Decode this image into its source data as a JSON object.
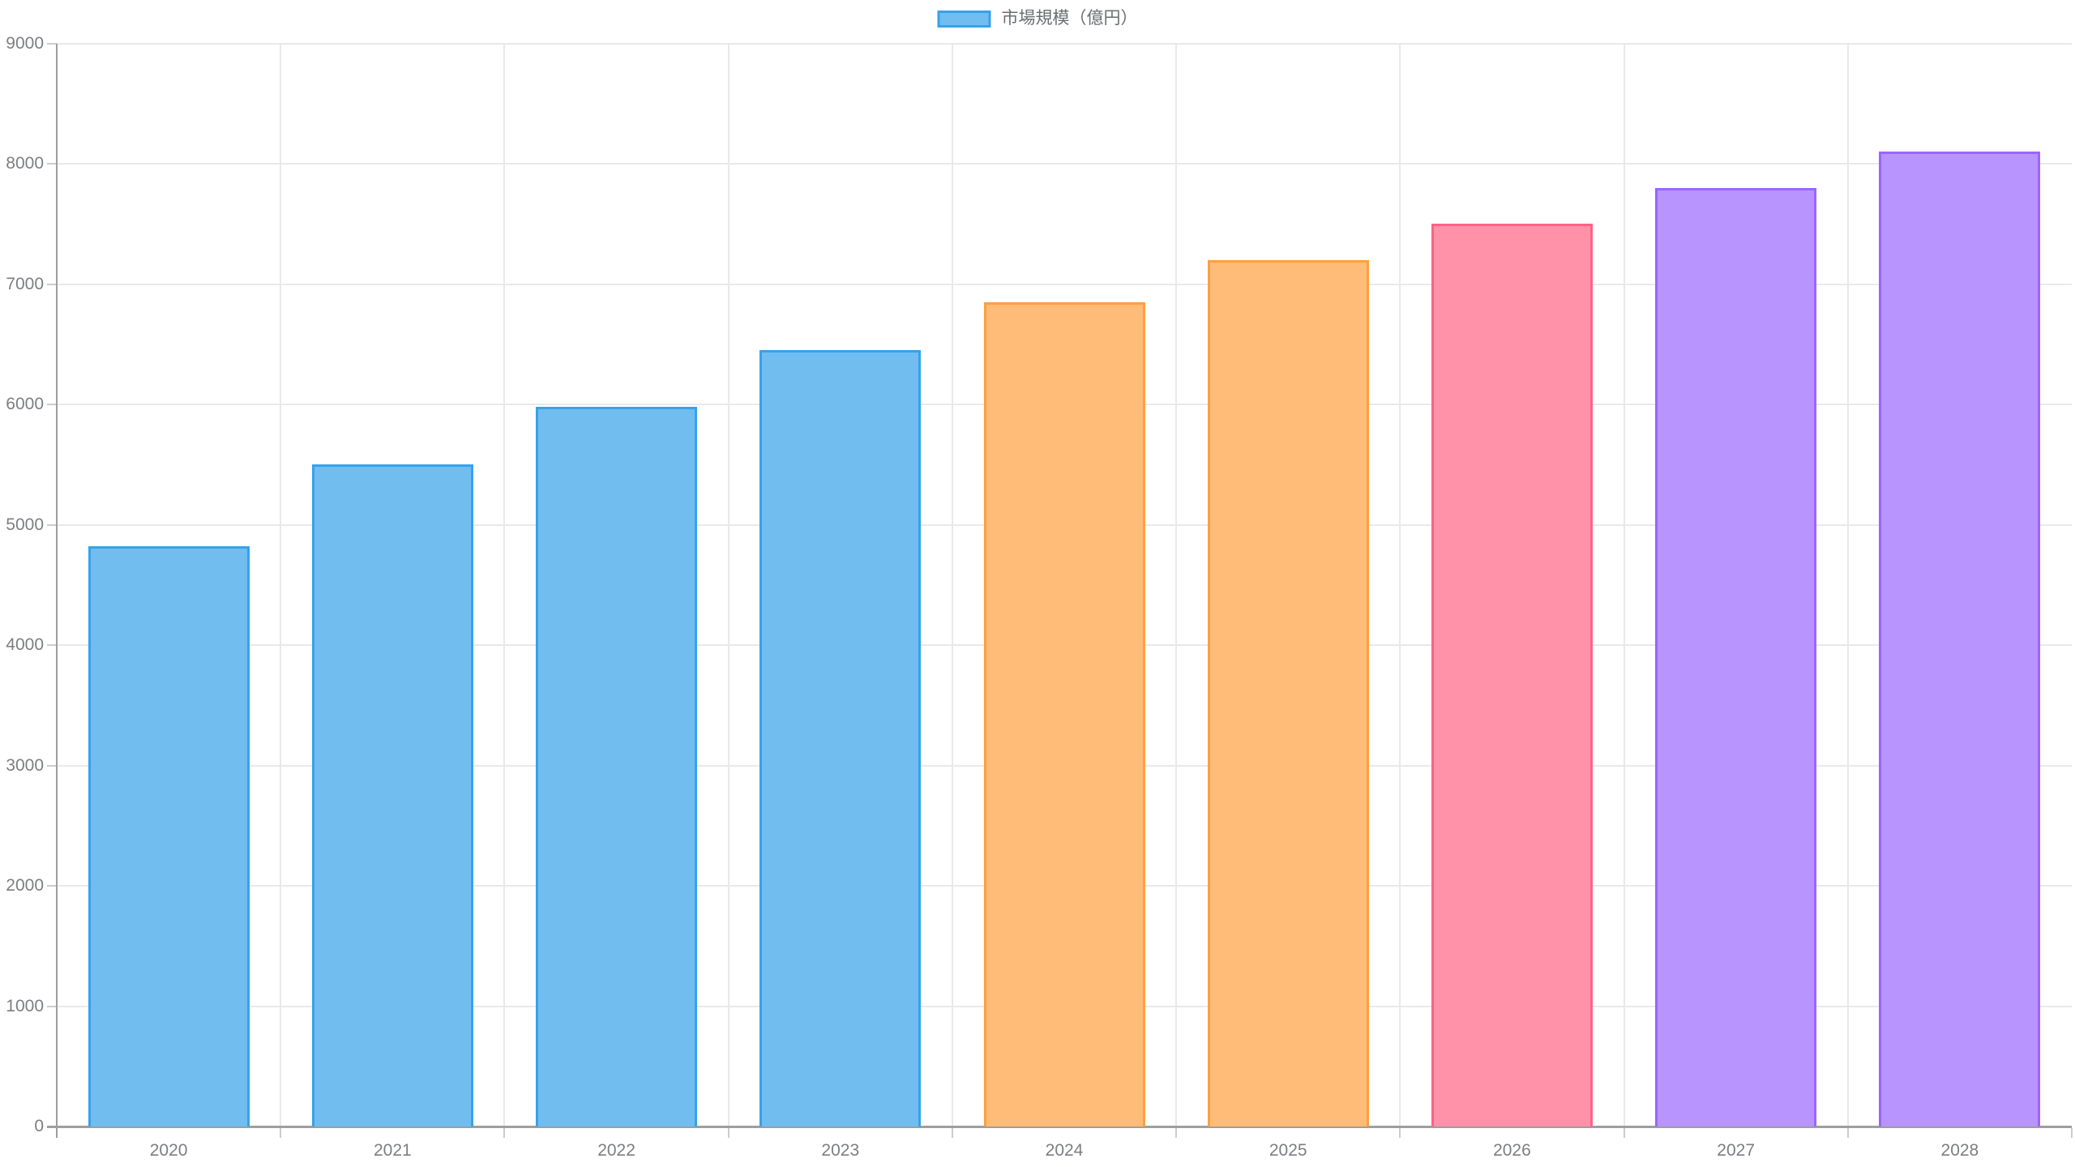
{
  "legend": {
    "label": "市場規模（億円）"
  },
  "chart_data": {
    "type": "bar",
    "title": "",
    "xlabel": "",
    "ylabel": "",
    "categories": [
      "2020",
      "2021",
      "2022",
      "2023",
      "2024",
      "2025",
      "2026",
      "2027",
      "2028"
    ],
    "series": [
      {
        "name": "市場規模（億円）",
        "values": [
          4820,
          5500,
          5980,
          6450,
          6850,
          7200,
          7500,
          7800,
          8100
        ]
      }
    ],
    "ylim": [
      0,
      9000
    ],
    "ytick_step": 1000,
    "ytick_labels": [
      "0",
      "1000",
      "2000",
      "3000",
      "4000",
      "5000",
      "6000",
      "7000",
      "8000",
      "9000"
    ],
    "grid": true,
    "legend_position": "top-center",
    "bar_colors": [
      {
        "fill": "#71BDF0",
        "border": "#36A2EB"
      },
      {
        "fill": "#71BDF0",
        "border": "#36A2EB"
      },
      {
        "fill": "#71BDF0",
        "border": "#36A2EB"
      },
      {
        "fill": "#71BDF0",
        "border": "#36A2EB"
      },
      {
        "fill": "#FFBB78",
        "border": "#FF9F40"
      },
      {
        "fill": "#FFBB78",
        "border": "#FF9F40"
      },
      {
        "fill": "#FF92A9",
        "border": "#FF6384"
      },
      {
        "fill": "#B894FF",
        "border": "#9966FF"
      },
      {
        "fill": "#B894FF",
        "border": "#9966FF"
      }
    ],
    "colors": {
      "legend_swatch_fill": "#71BDF0",
      "legend_swatch_border": "#36A2EB",
      "axis_line": "#9e9e9e",
      "gridline": "#e9e9e9",
      "tick": "#cccccc",
      "tick_label": "#7c7e82",
      "legend_text": "#6b6d70",
      "background": "#ffffff"
    }
  }
}
